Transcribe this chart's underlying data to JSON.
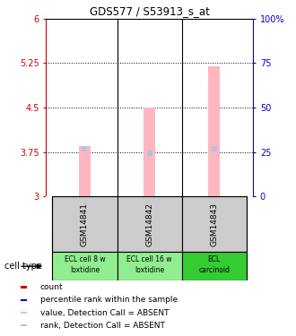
{
  "title": "GDS577 / S53913_s_at",
  "samples": [
    "GSM14841",
    "GSM14842",
    "GSM14843"
  ],
  "ct_labels": [
    "ECL cell 8 w\nloxtidine",
    "ECL cell 16 w\nloxtidine",
    "ECL\ncarcinoid"
  ],
  "cell_type_colors": [
    "#90EE90",
    "#90EE90",
    "#33CC33"
  ],
  "bar_bottom": 3.0,
  "bar_tops": [
    3.85,
    4.5,
    5.2
  ],
  "rank_values": [
    3.8,
    3.73,
    3.8
  ],
  "ylim_left": [
    3,
    6
  ],
  "ylim_right": [
    0,
    100
  ],
  "yticks_left": [
    3,
    3.75,
    4.5,
    5.25,
    6
  ],
  "yticks_right": [
    0,
    25,
    50,
    75,
    100
  ],
  "ytick_labels_left": [
    "3",
    "3.75",
    "4.5",
    "5.25",
    "6"
  ],
  "ytick_labels_right": [
    "0",
    "25",
    "50",
    "75",
    "100%"
  ],
  "hline_values": [
    3.75,
    4.5,
    5.25
  ],
  "bar_color": "#FFB6C1",
  "rank_color": "#B0C4DE",
  "bar_width": 0.18,
  "left_axis_color": "#CC0000",
  "right_axis_color": "#0000CC",
  "legend_items": [
    {
      "color": "#CC0000",
      "label": "count"
    },
    {
      "color": "#0000CC",
      "label": "percentile rank within the sample"
    },
    {
      "color": "#FFB6C1",
      "label": "value, Detection Call = ABSENT"
    },
    {
      "color": "#B0C4DE",
      "label": "rank, Detection Call = ABSENT"
    }
  ]
}
